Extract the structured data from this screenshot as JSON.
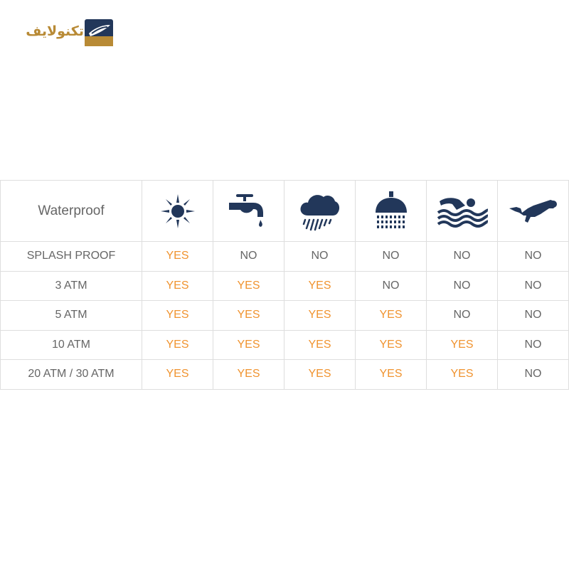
{
  "logo": {
    "text": "تکنولایف"
  },
  "table": {
    "header_label": "Waterproof",
    "icons": [
      "sun-icon",
      "faucet-icon",
      "rain-cloud-icon",
      "shower-icon",
      "swimmer-icon",
      "diver-icon"
    ],
    "rows": [
      {
        "label": "SPLASH PROOF",
        "values": [
          "YES",
          "NO",
          "NO",
          "NO",
          "NO",
          "NO"
        ]
      },
      {
        "label": "3 ATM",
        "values": [
          "YES",
          "YES",
          "YES",
          "NO",
          "NO",
          "NO"
        ]
      },
      {
        "label": "5 ATM",
        "values": [
          "YES",
          "YES",
          "YES",
          "YES",
          "NO",
          "NO"
        ]
      },
      {
        "label": "10 ATM",
        "values": [
          "YES",
          "YES",
          "YES",
          "YES",
          "YES",
          "NO"
        ]
      },
      {
        "label": "20 ATM / 30 ATM",
        "values": [
          "YES",
          "YES",
          "YES",
          "YES",
          "YES",
          "NO"
        ]
      }
    ]
  },
  "colors": {
    "yes": "#f0932f",
    "no": "#666666",
    "icon": "#22375a",
    "logo_gold": "#b88a35"
  }
}
